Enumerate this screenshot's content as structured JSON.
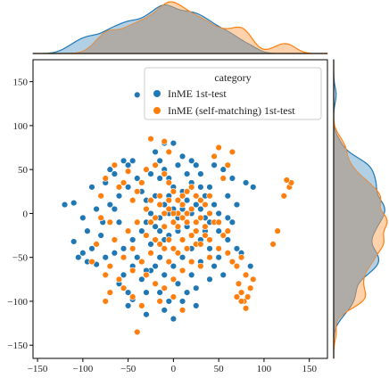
{
  "chart_data": {
    "type": "scatter",
    "title": "",
    "xlabel": "",
    "ylabel": "",
    "xlim": [
      -155,
      170
    ],
    "ylim": [
      -165,
      175
    ],
    "xticks": [
      -150,
      -100,
      -50,
      0,
      50,
      100,
      150
    ],
    "yticks": [
      -150,
      -100,
      -50,
      0,
      50,
      100,
      150
    ],
    "grid": false,
    "legend": {
      "title": "category",
      "placement": "top-right"
    },
    "marginals": {
      "top": "kde",
      "right": "kde",
      "overlap_color": "#a9a9a9"
    },
    "series": [
      {
        "name": "InME 1st-test",
        "color": "#1f77b4",
        "points": [
          [
            -110,
            12
          ],
          [
            -110,
            -32
          ],
          [
            -100,
            -45
          ],
          [
            -95,
            -55
          ],
          [
            -105,
            -50
          ],
          [
            -90,
            -40
          ],
          [
            -85,
            -58
          ],
          [
            -80,
            -25
          ],
          [
            -78,
            -10
          ],
          [
            -90,
            30
          ],
          [
            -75,
            35
          ],
          [
            -70,
            50
          ],
          [
            -65,
            45
          ],
          [
            -55,
            60
          ],
          [
            -50,
            55
          ],
          [
            -45,
            60
          ],
          [
            -40,
            40
          ],
          [
            -50,
            30
          ],
          [
            -60,
            20
          ],
          [
            -70,
            10
          ],
          [
            -75,
            -50
          ],
          [
            -70,
            -60
          ],
          [
            -65,
            -45
          ],
          [
            -60,
            -80
          ],
          [
            -55,
            -70
          ],
          [
            -50,
            -90
          ],
          [
            -45,
            -60
          ],
          [
            -50,
            -105
          ],
          [
            -30,
            -115
          ],
          [
            -45,
            -98
          ],
          [
            -35,
            -75
          ],
          [
            -30,
            -90
          ],
          [
            -25,
            -65
          ],
          [
            -40,
            -50
          ],
          [
            -20,
            -60
          ],
          [
            -15,
            -50
          ],
          [
            -10,
            -30
          ],
          [
            -35,
            -20
          ],
          [
            -30,
            -10
          ],
          [
            -25,
            0
          ],
          [
            -35,
            25
          ],
          [
            -30,
            15
          ],
          [
            -20,
            20
          ],
          [
            -15,
            40
          ],
          [
            -10,
            50
          ],
          [
            -25,
            45
          ],
          [
            -40,
            135
          ],
          [
            -20,
            70
          ],
          [
            -10,
            80
          ],
          [
            0,
            80
          ],
          [
            -15,
            60
          ],
          [
            5,
            55
          ],
          [
            10,
            65
          ],
          [
            15,
            45
          ],
          [
            20,
            35
          ],
          [
            25,
            55
          ],
          [
            30,
            30
          ],
          [
            10,
            25
          ],
          [
            0,
            30
          ],
          [
            -5,
            20
          ],
          [
            15,
            15
          ],
          [
            25,
            10
          ],
          [
            35,
            20
          ],
          [
            40,
            30
          ],
          [
            45,
            10
          ],
          [
            50,
            0
          ],
          [
            40,
            -10
          ],
          [
            35,
            -20
          ],
          [
            30,
            -30
          ],
          [
            20,
            -40
          ],
          [
            10,
            -50
          ],
          [
            0,
            -60
          ],
          [
            -10,
            -70
          ],
          [
            20,
            -70
          ],
          [
            25,
            -85
          ],
          [
            -5,
            -100
          ],
          [
            10,
            -100
          ],
          [
            0,
            -120
          ],
          [
            -15,
            -90
          ],
          [
            5,
            -80
          ],
          [
            40,
            -40
          ],
          [
            50,
            -50
          ],
          [
            55,
            -70
          ],
          [
            45,
            -60
          ],
          [
            60,
            -30
          ],
          [
            65,
            -10
          ],
          [
            70,
            10
          ],
          [
            60,
            20
          ],
          [
            65,
            40
          ],
          [
            45,
            55
          ],
          [
            55,
            50
          ],
          [
            80,
            35
          ],
          [
            88,
            30
          ],
          [
            85,
            -60
          ],
          [
            75,
            -45
          ],
          [
            70,
            -40
          ],
          [
            60,
            -5
          ],
          [
            50,
            -20
          ],
          [
            -5,
            0
          ],
          [
            0,
            5
          ],
          [
            5,
            -5
          ],
          [
            10,
            5
          ],
          [
            -10,
            10
          ],
          [
            -15,
            -5
          ],
          [
            5,
            -20
          ],
          [
            -5,
            -25
          ],
          [
            15,
            -15
          ],
          [
            20,
            0
          ],
          [
            -20,
            -15
          ],
          [
            -5,
            40
          ],
          [
            30,
            5
          ],
          [
            35,
            -5
          ],
          [
            -60,
            -10
          ],
          [
            -65,
            5
          ],
          [
            -85,
            5
          ],
          [
            -95,
            -20
          ],
          [
            -100,
            -5
          ],
          [
            -120,
            10
          ],
          [
            -45,
            -30
          ],
          [
            -55,
            -40
          ],
          [
            -25,
            -35
          ],
          [
            -15,
            -20
          ],
          [
            30,
            -55
          ],
          [
            40,
            -75
          ],
          [
            15,
            -90
          ],
          [
            25,
            -105
          ],
          [
            -10,
            -110
          ],
          [
            30,
            45
          ],
          [
            20,
            60
          ],
          [
            -30,
            -65
          ]
        ]
      },
      {
        "name": "InME (self-matching) 1st-test",
        "color": "#ff7f0e",
        "points": [
          [
            -40,
            -135
          ],
          [
            -75,
            -100
          ],
          [
            -70,
            -90
          ],
          [
            -90,
            -55
          ],
          [
            -85,
            -35
          ],
          [
            -80,
            20
          ],
          [
            -75,
            40
          ],
          [
            -80,
            -5
          ],
          [
            -70,
            -10
          ],
          [
            -60,
            30
          ],
          [
            -65,
            55
          ],
          [
            -50,
            48
          ],
          [
            -55,
            35
          ],
          [
            -40,
            25
          ],
          [
            -45,
            15
          ],
          [
            -35,
            35
          ],
          [
            -30,
            50
          ],
          [
            -25,
            85
          ],
          [
            -10,
            82
          ],
          [
            -5,
            70
          ],
          [
            -20,
            55
          ],
          [
            -10,
            45
          ],
          [
            -5,
            35
          ],
          [
            0,
            25
          ],
          [
            5,
            15
          ],
          [
            10,
            20
          ],
          [
            15,
            25
          ],
          [
            20,
            30
          ],
          [
            25,
            20
          ],
          [
            30,
            15
          ],
          [
            35,
            10
          ],
          [
            40,
            0
          ],
          [
            45,
            -10
          ],
          [
            35,
            -25
          ],
          [
            25,
            -20
          ],
          [
            15,
            -10
          ],
          [
            5,
            0
          ],
          [
            -5,
            5
          ],
          [
            -15,
            10
          ],
          [
            -25,
            15
          ],
          [
            -30,
            5
          ],
          [
            -20,
            -5
          ],
          [
            -10,
            -15
          ],
          [
            0,
            -10
          ],
          [
            10,
            -5
          ],
          [
            20,
            5
          ],
          [
            30,
            -5
          ],
          [
            -5,
            -30
          ],
          [
            -15,
            -35
          ],
          [
            -25,
            -45
          ],
          [
            -35,
            -55
          ],
          [
            -45,
            -65
          ],
          [
            -30,
            -70
          ],
          [
            -20,
            -80
          ],
          [
            -10,
            -85
          ],
          [
            0,
            -75
          ],
          [
            10,
            -65
          ],
          [
            20,
            -55
          ],
          [
            30,
            -60
          ],
          [
            40,
            -50
          ],
          [
            50,
            -40
          ],
          [
            55,
            -25
          ],
          [
            60,
            -45
          ],
          [
            65,
            -55
          ],
          [
            70,
            -60
          ],
          [
            75,
            -50
          ],
          [
            72,
            -80
          ],
          [
            75,
            -90
          ],
          [
            78,
            -100
          ],
          [
            80,
            -108
          ],
          [
            82,
            -95
          ],
          [
            85,
            -85
          ],
          [
            88,
            -75
          ],
          [
            80,
            -70
          ],
          [
            75,
            -100
          ],
          [
            70,
            -95
          ],
          [
            110,
            -35
          ],
          [
            115,
            -20
          ],
          [
            122,
            20
          ],
          [
            128,
            30
          ],
          [
            130,
            35
          ],
          [
            125,
            38
          ],
          [
            60,
            55
          ],
          [
            65,
            70
          ],
          [
            50,
            75
          ],
          [
            45,
            65
          ],
          [
            55,
            40
          ],
          [
            40,
            20
          ],
          [
            -5,
            -55
          ],
          [
            5,
            -45
          ],
          [
            15,
            -40
          ],
          [
            25,
            -35
          ],
          [
            -45,
            -95
          ],
          [
            -35,
            -105
          ],
          [
            -15,
            -100
          ],
          [
            0,
            -95
          ],
          [
            10,
            -110
          ],
          [
            -60,
            -75
          ],
          [
            -55,
            -85
          ],
          [
            -65,
            -30
          ],
          [
            -50,
            -20
          ],
          [
            -40,
            -10
          ],
          [
            -30,
            -25
          ],
          [
            -20,
            -30
          ],
          [
            -10,
            -40
          ],
          [
            0,
            -40
          ],
          [
            10,
            -30
          ],
          [
            20,
            -25
          ],
          [
            30,
            -35
          ],
          [
            40,
            -30
          ],
          [
            -10,
            0
          ],
          [
            0,
            0
          ],
          [
            10,
            10
          ],
          [
            -5,
            15
          ],
          [
            5,
            -15
          ],
          [
            15,
            0
          ],
          [
            -15,
            20
          ],
          [
            25,
            -10
          ],
          [
            -25,
            -10
          ],
          [
            35,
            -15
          ],
          [
            -70,
            -60
          ],
          [
            -75,
            -70
          ],
          [
            60,
            -20
          ],
          [
            50,
            -10
          ],
          [
            -45,
            -40
          ],
          [
            -55,
            -50
          ]
        ]
      }
    ]
  }
}
